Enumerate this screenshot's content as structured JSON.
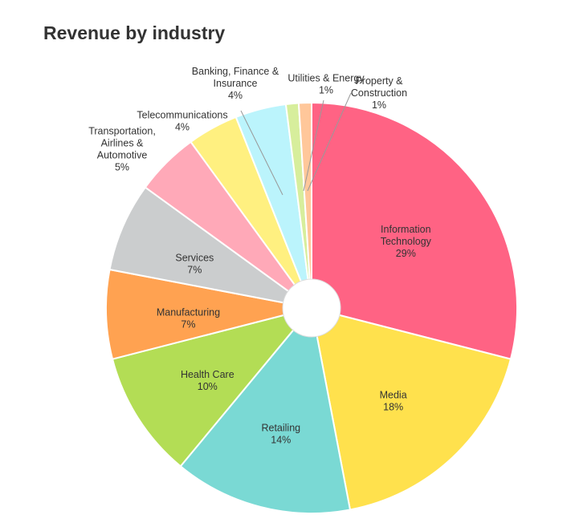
{
  "chart_data": {
    "type": "pie",
    "style": "donut",
    "title": "Revenue by industry",
    "slices": [
      {
        "label": "Information Technology",
        "label_lines": [
          "Information",
          "Technology"
        ],
        "value": 29,
        "value_label": "29%",
        "color": "#FF6384",
        "label_pos": "inside"
      },
      {
        "label": "Media",
        "label_lines": [
          "Media"
        ],
        "value": 18,
        "value_label": "18%",
        "color": "#FFE14D",
        "label_pos": "inside"
      },
      {
        "label": "Retailing",
        "label_lines": [
          "Retailing"
        ],
        "value": 14,
        "value_label": "14%",
        "color": "#7AD9D4",
        "label_pos": "inside"
      },
      {
        "label": "Health Care",
        "label_lines": [
          "Health Care"
        ],
        "value": 10,
        "value_label": "10%",
        "color": "#B3DD55",
        "label_pos": "inside"
      },
      {
        "label": "Manufacturing",
        "label_lines": [
          "Manufacturing"
        ],
        "value": 7,
        "value_label": "7%",
        "color": "#FFA251",
        "label_pos": "inside"
      },
      {
        "label": "Services",
        "label_lines": [
          "Services"
        ],
        "value": 7,
        "value_label": "7%",
        "color": "#CBCDCE",
        "label_pos": "inside"
      },
      {
        "label": "Transportation, Airlines & Automotive",
        "label_lines": [
          "Transportation,",
          "Airlines &",
          "Automotive"
        ],
        "value": 5,
        "value_label": "5%",
        "color": "#FFA9B8",
        "label_pos": "outside"
      },
      {
        "label": "Telecommunications",
        "label_lines": [
          "Telecommunications"
        ],
        "value": 4,
        "value_label": "4%",
        "color": "#FFF080",
        "label_pos": "outside"
      },
      {
        "label": "Banking, Finance & Insurance",
        "label_lines": [
          "Banking, Finance &",
          "Insurance"
        ],
        "value": 4,
        "value_label": "4%",
        "color": "#BBF4FC",
        "label_pos": "outside"
      },
      {
        "label": "Utilities & Energy",
        "label_lines": [
          "Utilities & Energy"
        ],
        "value": 1,
        "value_label": "1%",
        "color": "#D7EE9C",
        "label_pos": "outside"
      },
      {
        "label": "Property & Construction",
        "label_lines": [
          "Property &",
          "Construction"
        ],
        "value": 1,
        "value_label": "1%",
        "color": "#FFC79A",
        "label_pos": "outside"
      }
    ]
  }
}
